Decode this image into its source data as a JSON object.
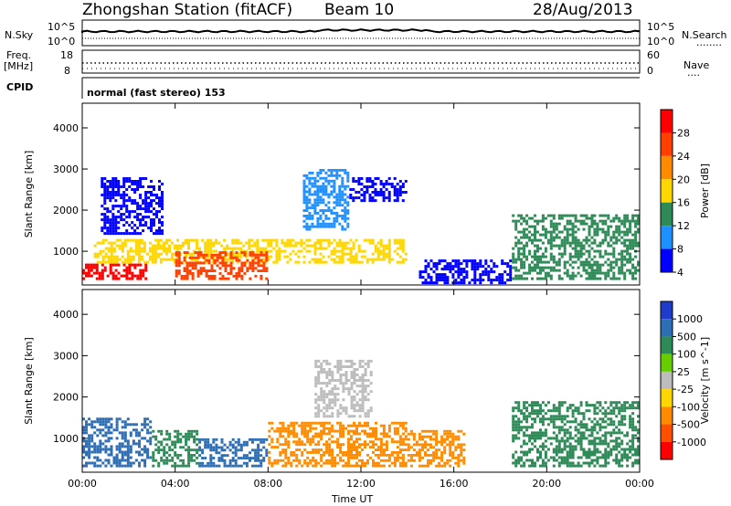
{
  "header": {
    "station": "Zhongshan Station (fitACF)",
    "beam": "Beam 10",
    "date": "28/Aug/2013"
  },
  "sky_panel": {
    "left_label": "N.Sky",
    "left_ticks": [
      "10^5",
      "10^0"
    ],
    "right_label": "N.Search",
    "right_ticks": [
      "10^5",
      "10^0"
    ],
    "right_key": "........"
  },
  "freq_panel": {
    "left_label_1": "Freq.",
    "left_label_2": "[MHz]",
    "left_ticks": [
      "18",
      "8"
    ],
    "right_label": "Nave",
    "right_ticks": [
      "60",
      "0"
    ],
    "right_key": "...."
  },
  "cpid": {
    "label": "CPID",
    "mode": "normal (fast stereo) 153"
  },
  "axes": {
    "ylabel": "Slant Range [km]",
    "yticks": [
      "4000",
      "3000",
      "2000",
      "1000"
    ],
    "xticks": [
      "00:00",
      "04:00",
      "08:00",
      "12:00",
      "16:00",
      "20:00",
      "00:00"
    ],
    "xlabel": "Time UT"
  },
  "chart_data": [
    {
      "type": "heatmap",
      "name": "power",
      "x_range_hours": [
        0,
        24
      ],
      "y_range_km": [
        180,
        4600
      ],
      "colorbar_label": "Power [dB]",
      "colorbar_ticks": [
        "28",
        "24",
        "20",
        "16",
        "12",
        "8",
        "4"
      ],
      "colorbar_colors": [
        "#ff0000",
        "#ff4000",
        "#ff8c00",
        "#ffd700",
        "#2e8b57",
        "#1e90ff",
        "#0000ff"
      ],
      "echo_regions": [
        {
          "t": [
            0.0,
            2.8
          ],
          "r": [
            300,
            700
          ],
          "level": 28
        },
        {
          "t": [
            0.5,
            14.0
          ],
          "r": [
            700,
            1300
          ],
          "level": 18
        },
        {
          "t": [
            0.8,
            3.5
          ],
          "r": [
            1400,
            2800
          ],
          "level": 6
        },
        {
          "t": [
            4.0,
            8.0
          ],
          "r": [
            300,
            1000
          ],
          "level": 24
        },
        {
          "t": [
            9.5,
            11.5
          ],
          "r": [
            1500,
            3000
          ],
          "level": 8
        },
        {
          "t": [
            11.5,
            14.0
          ],
          "r": [
            2200,
            2800
          ],
          "level": 6
        },
        {
          "t": [
            14.5,
            18.5
          ],
          "r": [
            200,
            800
          ],
          "level": 6
        },
        {
          "t": [
            18.5,
            24.0
          ],
          "r": [
            300,
            1900
          ],
          "level": 14
        }
      ]
    },
    {
      "type": "heatmap",
      "name": "velocity",
      "x_range_hours": [
        0,
        24
      ],
      "y_range_km": [
        180,
        4600
      ],
      "colorbar_label": "Velocity [m s^-1]",
      "colorbar_ticks": [
        "1000",
        "500",
        "100",
        "25",
        "-25",
        "-100",
        "-500",
        "-1000"
      ],
      "colorbar_colors": [
        "#1e3cc8",
        "#2e6eb4",
        "#2e8b57",
        "#66cd00",
        "#bdbdbd",
        "#ffd700",
        "#ff8c00",
        "#ff5000",
        "#ff0000"
      ],
      "echo_regions": [
        {
          "t": [
            0.0,
            3.0
          ],
          "r": [
            300,
            1500
          ],
          "level": 800
        },
        {
          "t": [
            3.0,
            5.0
          ],
          "r": [
            300,
            1200
          ],
          "level": 100
        },
        {
          "t": [
            5.0,
            8.0
          ],
          "r": [
            300,
            1000
          ],
          "level": 800
        },
        {
          "t": [
            8.0,
            14.0
          ],
          "r": [
            300,
            1400
          ],
          "level": -200
        },
        {
          "t": [
            10.0,
            12.5
          ],
          "r": [
            1500,
            2900
          ],
          "level": 0
        },
        {
          "t": [
            14.0,
            16.5
          ],
          "r": [
            300,
            1200
          ],
          "level": -200
        },
        {
          "t": [
            18.5,
            24.0
          ],
          "r": [
            300,
            1900
          ],
          "level": 100
        }
      ]
    }
  ]
}
